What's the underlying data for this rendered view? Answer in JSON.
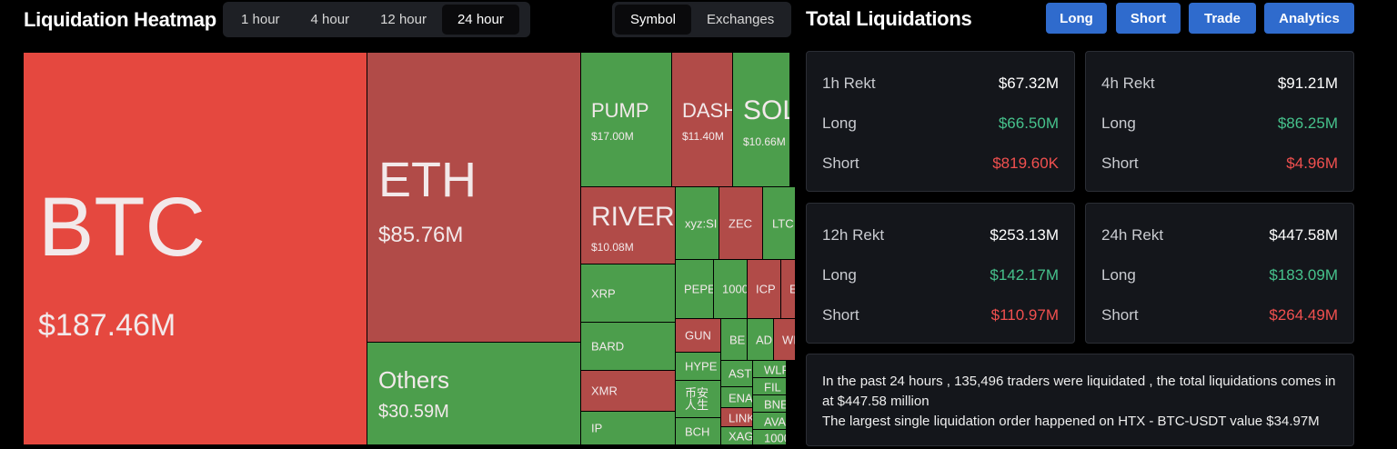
{
  "header": {
    "title": "Liquidation Heatmap",
    "timeframes": [
      "1 hour",
      "4 hour",
      "12 hour",
      "24 hour"
    ],
    "views": [
      "Symbol",
      "Exchanges"
    ]
  },
  "heatmap": {
    "tiles": [
      {
        "label": "BTC",
        "value": "$187.46M",
        "color": "#e5483f"
      },
      {
        "label": "ETH",
        "value": "$85.76M",
        "color": "#b14b48"
      },
      {
        "label": "Others",
        "value": "$30.59M",
        "color": "#4c9e4c"
      },
      {
        "label": "PUMP",
        "value": "$17.00M",
        "color": "#4c9e4c"
      },
      {
        "label": "DASH",
        "value": "$11.40M",
        "color": "#b14b48"
      },
      {
        "label": "SOL",
        "value": "$10.66M",
        "color": "#4c9e4c"
      },
      {
        "label": "RIVER",
        "value": "$10.08M",
        "color": "#b14b48"
      },
      {
        "label": "xyz:SI",
        "color": "#4c9e4c"
      },
      {
        "label": "ZEC",
        "color": "#b14b48"
      },
      {
        "label": "LTC",
        "color": "#4c9e4c"
      },
      {
        "label": "XRP",
        "color": "#4c9e4c"
      },
      {
        "label": "BARD",
        "color": "#4c9e4c"
      },
      {
        "label": "XMR",
        "color": "#b14b48"
      },
      {
        "label": "IP",
        "color": "#4c9e4c"
      },
      {
        "label": "PEPE",
        "color": "#4c9e4c"
      },
      {
        "label": "1000",
        "color": "#4c9e4c"
      },
      {
        "label": "ICP",
        "color": "#b14b48"
      },
      {
        "label": "E",
        "color": "#b14b48"
      },
      {
        "label": "GUN",
        "color": "#b14b48"
      },
      {
        "label": "BE",
        "color": "#4c9e4c"
      },
      {
        "label": "AD",
        "color": "#4c9e4c"
      },
      {
        "label": "WI",
        "color": "#b14b48"
      },
      {
        "label": "HYPE",
        "color": "#4c9e4c"
      },
      {
        "label": "币安人生",
        "color": "#4c9e4c"
      },
      {
        "label": "BCH",
        "color": "#4c9e4c"
      },
      {
        "label": "AST",
        "color": "#4c9e4c"
      },
      {
        "label": "WLF",
        "color": "#4c9e4c"
      },
      {
        "label": "FIL",
        "color": "#4c9e4c"
      },
      {
        "label": "ENA",
        "color": "#4c9e4c"
      },
      {
        "label": "BNE",
        "color": "#4c9e4c"
      },
      {
        "label": "LINK",
        "color": "#b14b48"
      },
      {
        "label": "AVA",
        "color": "#4c9e4c"
      },
      {
        "label": "XAG",
        "color": "#4c9e4c"
      },
      {
        "label": "1000",
        "color": "#4c9e4c"
      }
    ]
  },
  "summary": {
    "title": "Total Liquidations",
    "buttons": [
      "Long",
      "Short",
      "Trade",
      "Analytics"
    ],
    "cards": [
      {
        "title": "1h Rekt",
        "total": "$67.32M",
        "long_label": "Long",
        "long": "$66.50M",
        "short_label": "Short",
        "short": "$819.60K"
      },
      {
        "title": "4h Rekt",
        "total": "$91.21M",
        "long_label": "Long",
        "long": "$86.25M",
        "short_label": "Short",
        "short": "$4.96M"
      },
      {
        "title": "12h Rekt",
        "total": "$253.13M",
        "long_label": "Long",
        "long": "$142.17M",
        "short_label": "Short",
        "short": "$110.97M"
      },
      {
        "title": "24h Rekt",
        "total": "$447.58M",
        "long_label": "Long",
        "long": "$183.09M",
        "short_label": "Short",
        "short": "$264.49M"
      }
    ],
    "note": [
      "In the past 24 hours , 135,496 traders were liquidated , the total liquidations comes in at $447.58 million",
      "The largest single liquidation order happened on HTX - BTC-USDT value $34.97M"
    ]
  }
}
